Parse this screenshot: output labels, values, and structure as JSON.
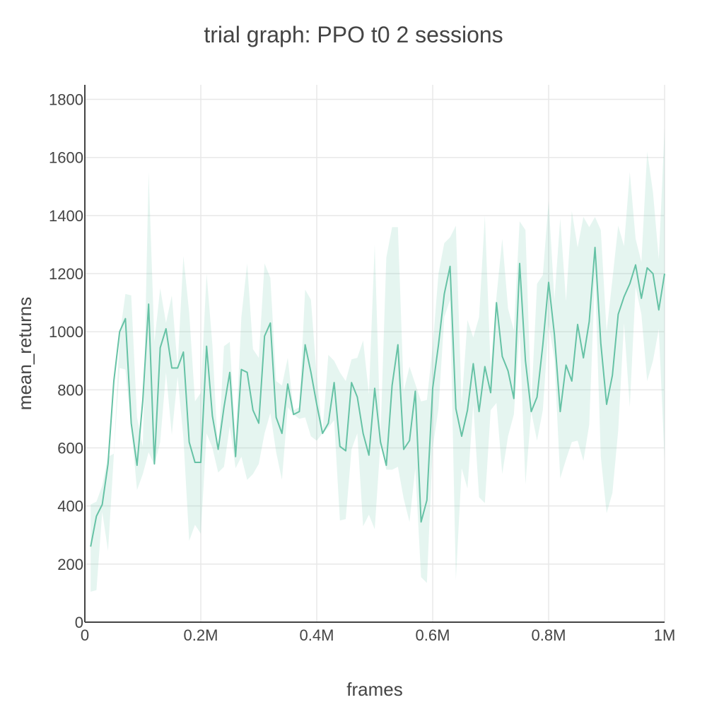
{
  "chart_data": {
    "type": "line",
    "title": "trial graph: PPO t0 2 sessions",
    "xlabel": "frames",
    "ylabel": "mean_returns",
    "xlim": [
      0,
      1000000
    ],
    "ylim": [
      0,
      1850
    ],
    "x_ticks": [
      {
        "value": 0,
        "label": "0"
      },
      {
        "value": 200000,
        "label": "0.2M"
      },
      {
        "value": 400000,
        "label": "0.4M"
      },
      {
        "value": 600000,
        "label": "0.6M"
      },
      {
        "value": 800000,
        "label": "0.8M"
      },
      {
        "value": 1000000,
        "label": "1M"
      }
    ],
    "y_ticks": [
      {
        "value": 0,
        "label": "0"
      },
      {
        "value": 200,
        "label": "200"
      },
      {
        "value": 400,
        "label": "400"
      },
      {
        "value": 600,
        "label": "600"
      },
      {
        "value": 800,
        "label": "800"
      },
      {
        "value": 1000,
        "label": "1000"
      },
      {
        "value": 1200,
        "label": "1200"
      },
      {
        "value": 1400,
        "label": "1400"
      },
      {
        "value": 1600,
        "label": "1600"
      },
      {
        "value": 1800,
        "label": "1800"
      }
    ],
    "grid": true,
    "legend": "none",
    "colors": {
      "line": "#66c2a5",
      "band": "#66c2a5",
      "band_opacity": 0.17,
      "text": "#444444",
      "grid": "#e8e8e8"
    },
    "series": [
      {
        "x": [
          10000,
          20000,
          30000,
          40000,
          50000,
          60000,
          70000,
          80000,
          90000,
          100000,
          110000,
          120000,
          130000,
          140000,
          150000,
          160000,
          170000,
          180000,
          190000,
          200000,
          210000,
          220000,
          230000,
          240000,
          250000,
          260000,
          270000,
          280000,
          290000,
          300000,
          310000,
          320000,
          330000,
          340000,
          350000,
          360000,
          370000,
          380000,
          390000,
          400000,
          410000,
          420000,
          430000,
          440000,
          450000,
          460000,
          470000,
          480000,
          490000,
          500000,
          510000,
          520000,
          530000,
          540000,
          550000,
          560000,
          570000,
          580000,
          590000,
          600000,
          610000,
          620000,
          630000,
          640000,
          650000,
          660000,
          670000,
          680000,
          690000,
          700000,
          710000,
          720000,
          730000,
          740000,
          750000,
          760000,
          770000,
          780000,
          790000,
          800000,
          810000,
          820000,
          830000,
          840000,
          850000,
          860000,
          870000,
          880000,
          890000,
          900000,
          910000,
          920000,
          930000,
          940000,
          950000,
          960000,
          970000,
          980000,
          990000,
          1000000
        ],
        "y": [
          260,
          365,
          405,
          545,
          830,
          1000,
          1045,
          685,
          540,
          765,
          1095,
          545,
          945,
          1010,
          875,
          875,
          930,
          620,
          550,
          550,
          950,
          710,
          595,
          740,
          860,
          570,
          870,
          860,
          730,
          685,
          985,
          1030,
          705,
          650,
          820,
          715,
          725,
          955,
          860,
          750,
          650,
          685,
          825,
          605,
          590,
          825,
          775,
          650,
          575,
          805,
          620,
          540,
          815,
          955,
          595,
          625,
          795,
          345,
          420,
          805,
          955,
          1130,
          1225,
          735,
          640,
          730,
          890,
          725,
          880,
          790,
          1100,
          915,
          865,
          770,
          1235,
          900,
          725,
          775,
          955,
          1170,
          990,
          725,
          885,
          830,
          1025,
          910,
          1035,
          1290,
          960,
          750,
          850,
          1060,
          1120,
          1165,
          1230,
          1115,
          1220,
          1200,
          1075,
          1200
        ],
        "lower": [
          105,
          110,
          380,
          245,
          575,
          875,
          870,
          670,
          455,
          510,
          585,
          540,
          620,
          860,
          645,
          845,
          635,
          280,
          335,
          305,
          650,
          600,
          515,
          535,
          675,
          530,
          570,
          490,
          510,
          545,
          650,
          720,
          585,
          490,
          740,
          715,
          700,
          705,
          640,
          625,
          650,
          670,
          695,
          350,
          355,
          595,
          650,
          330,
          370,
          320,
          620,
          525,
          525,
          535,
          425,
          345,
          530,
          155,
          135,
          600,
          735,
          1050,
          1110,
          145,
          530,
          460,
          750,
          430,
          410,
          730,
          755,
          510,
          640,
          715,
          1005,
          475,
          725,
          625,
          730,
          1025,
          905,
          495,
          560,
          620,
          625,
          555,
          680,
          1195,
          570,
          375,
          445,
          660,
          1030,
          740,
          1155,
          1060,
          830,
          900,
          1010,
          560
        ],
        "upper": [
          405,
          415,
          470,
          570,
          580,
          985,
          1130,
          1125,
          705,
          605,
          1550,
          965,
          1150,
          1030,
          1125,
          880,
          1260,
          1065,
          760,
          790,
          1200,
          955,
          575,
          950,
          965,
          625,
          1050,
          1235,
          940,
          910,
          1235,
          1185,
          830,
          815,
          910,
          730,
          740,
          1145,
          1110,
          845,
          655,
          920,
          900,
          860,
          830,
          905,
          910,
          970,
          785,
          1300,
          640,
          1255,
          1360,
          1360,
          795,
          880,
          820,
          760,
          765,
          950,
          1200,
          1305,
          1325,
          1365,
          750,
          1040,
          980,
          1050,
          1400,
          875,
          1120,
          1320,
          1080,
          1005,
          1380,
          1350,
          750,
          1165,
          1195,
          1450,
          1110,
          1390,
          1105,
          1415,
          1290,
          1395,
          1360,
          1395,
          1350,
          1000,
          1180,
          1365,
          1295,
          1550,
          1320,
          1240,
          1620,
          1480,
          1250,
          1700
        ]
      }
    ]
  }
}
